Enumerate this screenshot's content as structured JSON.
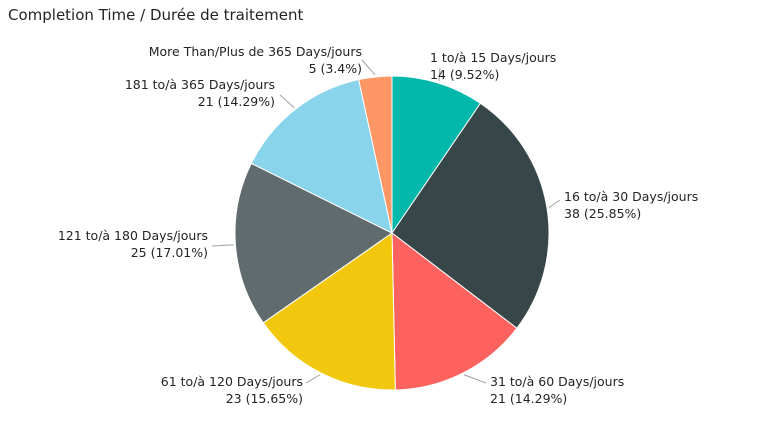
{
  "chart_data": {
    "type": "pie",
    "title": "Completion Time / Durée de traitement",
    "start_angle_deg": 0,
    "direction": "clockwise",
    "slices": [
      {
        "label": "1 to/à 15 Days/jours",
        "value": 14,
        "value_label": "14 (9.52%)",
        "color": "#01B8AA"
      },
      {
        "label": "16 to/à 30 Days/jours",
        "value": 38,
        "value_label": "38 (25.85%)",
        "color": "#374649"
      },
      {
        "label": "31 to/à 60 Days/jours",
        "value": 21,
        "value_label": "21 (14.29%)",
        "color": "#FD625E"
      },
      {
        "label": "61 to/à 120 Days/jours",
        "value": 23,
        "value_label": "23 (15.65%)",
        "color": "#F2C80F"
      },
      {
        "label": "121 to/à 180 Days/jours",
        "value": 25,
        "value_label": "25 (17.01%)",
        "color": "#5F6B6D"
      },
      {
        "label": "181 to/à 365 Days/jours",
        "value": 21,
        "value_label": "21 (14.29%)",
        "color": "#8AD4EB"
      },
      {
        "label": "More Than/Plus de 365 Days/jours",
        "value": 5,
        "value_label": "5 (3.4%)",
        "color": "#FE9666"
      }
    ]
  }
}
